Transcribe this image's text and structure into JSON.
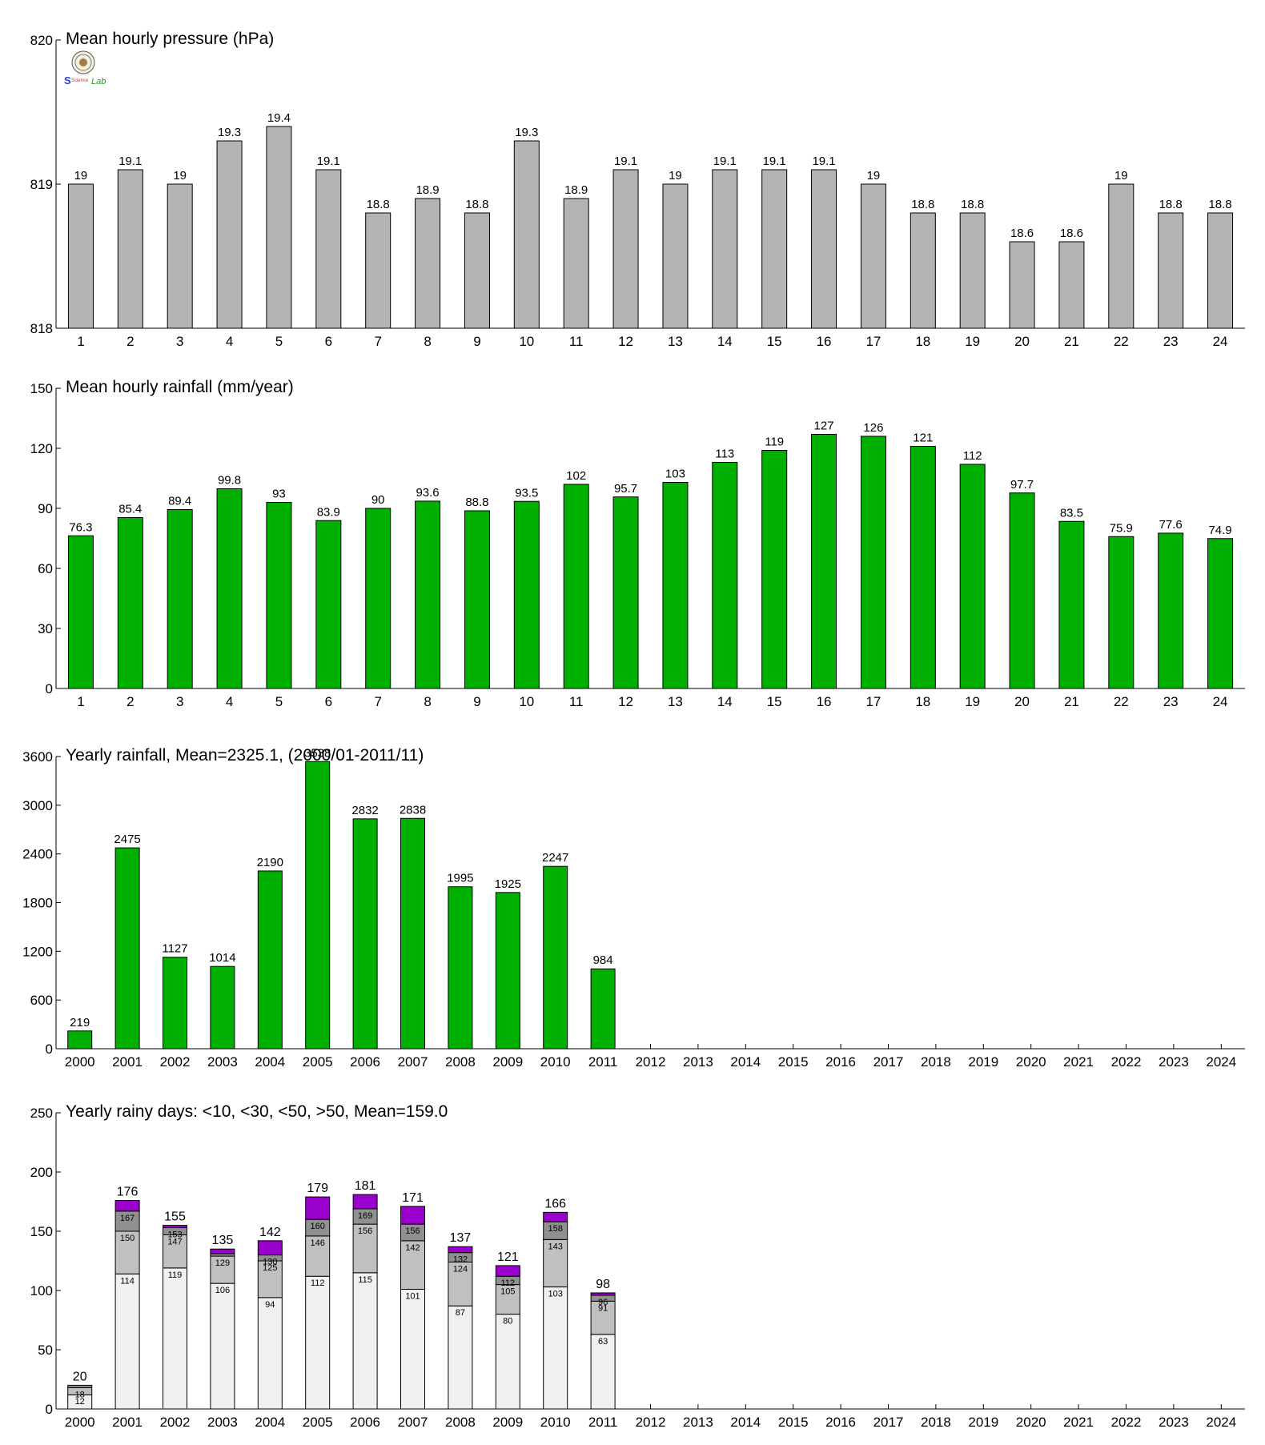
{
  "colors": {
    "pressure_bar": "#b4b4b4",
    "rain_bar": "#00b000",
    "days_lt10": "#f0f0f0",
    "days_lt30": "#c0c0c0",
    "days_lt50": "#909090",
    "days_gt50": "#9900cc",
    "bar_stroke": "#000000"
  },
  "logo": {
    "icon": "lab-seal-logo",
    "text_left": "S",
    "text_mid": "Science",
    "text_right": "Lab"
  },
  "chart_data": [
    {
      "type": "bar",
      "title": "Mean hourly pressure (hPa)",
      "categories": [
        "1",
        "2",
        "3",
        "4",
        "5",
        "6",
        "7",
        "8",
        "9",
        "10",
        "11",
        "12",
        "13",
        "14",
        "15",
        "16",
        "17",
        "18",
        "19",
        "20",
        "21",
        "22",
        "23",
        "24"
      ],
      "values": [
        819.0,
        819.1,
        819.0,
        819.3,
        819.4,
        819.1,
        818.8,
        818.9,
        818.8,
        819.3,
        818.9,
        819.1,
        819.0,
        819.1,
        819.1,
        819.1,
        819.0,
        818.8,
        818.8,
        818.6,
        818.6,
        819.0,
        818.8,
        818.8
      ],
      "value_labels": [
        "19",
        "19.1",
        "19",
        "19.3",
        "19.4",
        "19.1",
        "18.8",
        "18.9",
        "18.8",
        "19.3",
        "18.9",
        "19.1",
        "19",
        "19.1",
        "19.1",
        "19.1",
        "19",
        "18.8",
        "18.8",
        "18.6",
        "18.6",
        "19",
        "18.8",
        "18.8"
      ],
      "ylim": [
        818,
        820
      ],
      "yticks": [
        818,
        819,
        820
      ],
      "ytick_labels": [
        "818",
        "819",
        "820"
      ]
    },
    {
      "type": "bar",
      "title": "Mean hourly rainfall (mm/year)",
      "categories": [
        "1",
        "2",
        "3",
        "4",
        "5",
        "6",
        "7",
        "8",
        "9",
        "10",
        "11",
        "12",
        "13",
        "14",
        "15",
        "16",
        "17",
        "18",
        "19",
        "20",
        "21",
        "22",
        "23",
        "24"
      ],
      "values": [
        76.3,
        85.4,
        89.4,
        99.8,
        93,
        83.9,
        90,
        93.6,
        88.8,
        93.5,
        102,
        95.7,
        103,
        113,
        119,
        127,
        126,
        121,
        112,
        97.7,
        83.5,
        75.9,
        77.6,
        74.9
      ],
      "value_labels": [
        "76.3",
        "85.4",
        "89.4",
        "99.8",
        "93",
        "83.9",
        "90",
        "93.6",
        "88.8",
        "93.5",
        "102",
        "95.7",
        "103",
        "113",
        "119",
        "127",
        "126",
        "121",
        "112",
        "97.7",
        "83.5",
        "75.9",
        "77.6",
        "74.9"
      ],
      "ylim": [
        0,
        150
      ],
      "yticks": [
        0,
        30,
        60,
        90,
        120,
        150
      ],
      "ytick_labels": [
        "0",
        "30",
        "60",
        "90",
        "120",
        "150"
      ]
    },
    {
      "type": "bar",
      "title": "Yearly rainfall, Mean=2325.1, (2000/01-2011/11)",
      "categories": [
        "2000",
        "2001",
        "2002",
        "2003",
        "2004",
        "2005",
        "2006",
        "2007",
        "2008",
        "2009",
        "2010",
        "2011",
        "2012",
        "2013",
        "2014",
        "2015",
        "2016",
        "2017",
        "2018",
        "2019",
        "2020",
        "2021",
        "2022",
        "2023",
        "2024"
      ],
      "values": [
        219,
        2475,
        1127,
        1014,
        2190,
        3538,
        2832,
        2838,
        1995,
        1925,
        2247,
        984,
        null,
        null,
        null,
        null,
        null,
        null,
        null,
        null,
        null,
        null,
        null,
        null,
        null
      ],
      "value_labels": [
        "219",
        "2475",
        "1127",
        "1014",
        "2190",
        "3538",
        "2832",
        "2838",
        "1995",
        "1925",
        "2247",
        "984",
        "",
        "",
        "",
        "",
        "",
        "",
        "",
        "",
        "",
        "",
        "",
        "",
        ""
      ],
      "ylim": [
        0,
        3600
      ],
      "yticks": [
        0,
        600,
        1200,
        1800,
        2400,
        3000,
        3600
      ],
      "ytick_labels": [
        "0",
        "600",
        "1200",
        "1800",
        "2400",
        "3000",
        "3600"
      ]
    },
    {
      "type": "bar",
      "stacked": true,
      "title": "Yearly rainy days: <10, <30, <50, >50, Mean=159.0",
      "categories": [
        "2000",
        "2001",
        "2002",
        "2003",
        "2004",
        "2005",
        "2006",
        "2007",
        "2008",
        "2009",
        "2010",
        "2011",
        "2012",
        "2013",
        "2014",
        "2015",
        "2016",
        "2017",
        "2018",
        "2019",
        "2020",
        "2021",
        "2022",
        "2023",
        "2024"
      ],
      "cumulative": [
        [
          12,
          18,
          20,
          20
        ],
        [
          114,
          150,
          167,
          176
        ],
        [
          119,
          147,
          153,
          155
        ],
        [
          106,
          129,
          131,
          135
        ],
        [
          94,
          125,
          130,
          142
        ],
        [
          112,
          146,
          160,
          179
        ],
        [
          115,
          156,
          169,
          181
        ],
        [
          101,
          142,
          156,
          171
        ],
        [
          87,
          124,
          132,
          137
        ],
        [
          80,
          105,
          112,
          121
        ],
        [
          103,
          143,
          158,
          166
        ],
        [
          63,
          91,
          96,
          98
        ],
        null,
        null,
        null,
        null,
        null,
        null,
        null,
        null,
        null,
        null,
        null,
        null,
        null
      ],
      "segment_labels": [
        [
          "12",
          "18",
          ""
        ],
        [
          "114",
          "150",
          "167"
        ],
        [
          "119",
          "147",
          "153"
        ],
        [
          "106",
          "129",
          ""
        ],
        [
          "94",
          "125",
          "130"
        ],
        [
          "112",
          "146",
          "160"
        ],
        [
          "115",
          "156",
          "169"
        ],
        [
          "101",
          "142",
          "156"
        ],
        [
          "87",
          "124",
          "132"
        ],
        [
          "80",
          "105",
          "112"
        ],
        [
          "103",
          "143",
          "158"
        ],
        [
          "63",
          "91",
          "96"
        ],
        null,
        null,
        null,
        null,
        null,
        null,
        null,
        null,
        null,
        null,
        null,
        null,
        null
      ],
      "total_labels": [
        "20",
        "176",
        "155",
        "135",
        "142",
        "179",
        "181",
        "171",
        "137",
        "121",
        "166",
        "98",
        "",
        "",
        "",
        "",
        "",
        "",
        "",
        "",
        "",
        "",
        "",
        "",
        ""
      ],
      "ylim": [
        0,
        250
      ],
      "yticks": [
        0,
        50,
        100,
        150,
        200,
        250
      ],
      "ytick_labels": [
        "0",
        "50",
        "100",
        "150",
        "200",
        "250"
      ]
    }
  ]
}
